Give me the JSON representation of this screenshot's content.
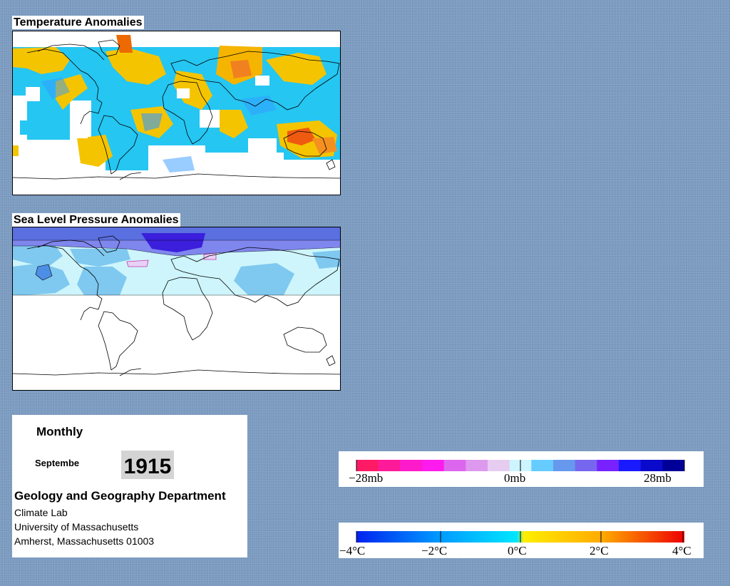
{
  "panels": {
    "temperature": {
      "title": "Temperature Anomalies"
    },
    "pressure": {
      "title": "Sea Level Pressure Anomalies"
    }
  },
  "info": {
    "period": "Monthly",
    "month": "Septembe",
    "year": "1915",
    "department": "Geology and Geography Department",
    "lab": "Climate Lab",
    "university": "University of Massachusetts",
    "address": "Amherst, Massachusetts 01003"
  },
  "legends": {
    "pressure": {
      "labels": [
        "−28mb",
        "0mb",
        "28mb"
      ],
      "colors": [
        "#ff1a66",
        "#ff1a99",
        "#ff1acc",
        "#ff1aee",
        "#dd66ee",
        "#dd99ee",
        "#e6ccf0",
        "#ccf5ff",
        "#66ccff",
        "#6699ee",
        "#7766ee",
        "#7722ff",
        "#1a1aff",
        "#0a0acc",
        "#000099"
      ]
    },
    "temperature": {
      "labels": [
        "−4°C",
        "−2°C",
        "0°C",
        "2°C",
        "4°C"
      ],
      "colors": [
        "#0022ee",
        "#0099ff",
        "#00e6ff",
        "#ffee00",
        "#ffaa00",
        "#ff5500",
        "#ee0000"
      ]
    }
  },
  "colors": {
    "background": "#7b9bc0",
    "coastline": "#000000"
  }
}
